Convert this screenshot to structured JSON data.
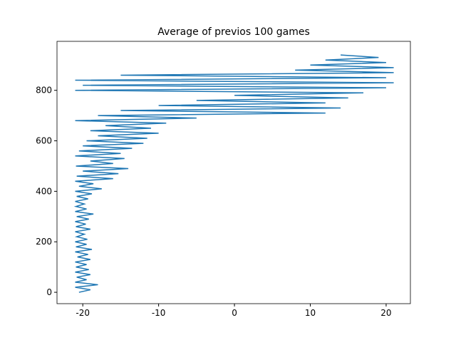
{
  "chart_data": {
    "type": "line",
    "title": "Average of previos 100 games",
    "x": [
      -20.5,
      -19,
      -21,
      -18,
      -21,
      -19.5,
      -20.8,
      -19,
      -21,
      -19.2,
      -20.9,
      -19.5,
      -21,
      -19,
      -20.7,
      -19.3,
      -21,
      -18.8,
      -20.9,
      -19.5,
      -21,
      -19.4,
      -20.8,
      -19.8,
      -21,
      -19,
      -20.9,
      -19.6,
      -21,
      -19.2,
      -20.8,
      -18.6,
      -21,
      -19.5,
      -20.9,
      -19.8,
      -21,
      -19.3,
      -20.8,
      -18.8,
      -21,
      -17.5,
      -20.5,
      -18.6,
      -21,
      -16,
      -20.8,
      -15.3,
      -20,
      -14,
      -20.9,
      -16,
      -19,
      -14.5,
      -21,
      -15,
      -20.5,
      -13.5,
      -20,
      -12,
      -19.5,
      -11.5,
      -18,
      -10,
      -19,
      -11,
      -17,
      -9,
      -21,
      -5,
      -18,
      12,
      -15,
      14,
      -10,
      12,
      -5,
      15,
      0,
      17,
      -21,
      20,
      -20,
      21,
      -21,
      20,
      -15,
      21,
      8,
      21,
      10,
      20,
      12,
      19,
      14
    ],
    "values": [
      0,
      10,
      20,
      30,
      40,
      50,
      60,
      70,
      80,
      90,
      100,
      110,
      120,
      130,
      140,
      150,
      160,
      170,
      180,
      190,
      200,
      210,
      220,
      230,
      240,
      250,
      260,
      270,
      280,
      290,
      300,
      310,
      320,
      330,
      340,
      350,
      360,
      370,
      380,
      390,
      400,
      410,
      420,
      430,
      440,
      450,
      460,
      470,
      480,
      490,
      500,
      510,
      520,
      530,
      540,
      550,
      560,
      570,
      580,
      590,
      600,
      610,
      620,
      630,
      640,
      650,
      660,
      670,
      680,
      690,
      700,
      710,
      720,
      730,
      740,
      750,
      760,
      770,
      780,
      790,
      800,
      810,
      820,
      830,
      840,
      850,
      860,
      870,
      880,
      890,
      900,
      910,
      920,
      930,
      940
    ],
    "color": "#1f77b4",
    "xlim": [
      -23.4,
      23.2
    ],
    "xticks": [
      -20,
      -10,
      0,
      10,
      20
    ],
    "ylim": [
      -45,
      994
    ],
    "yticks": [
      0,
      200,
      400,
      600,
      800
    ]
  }
}
